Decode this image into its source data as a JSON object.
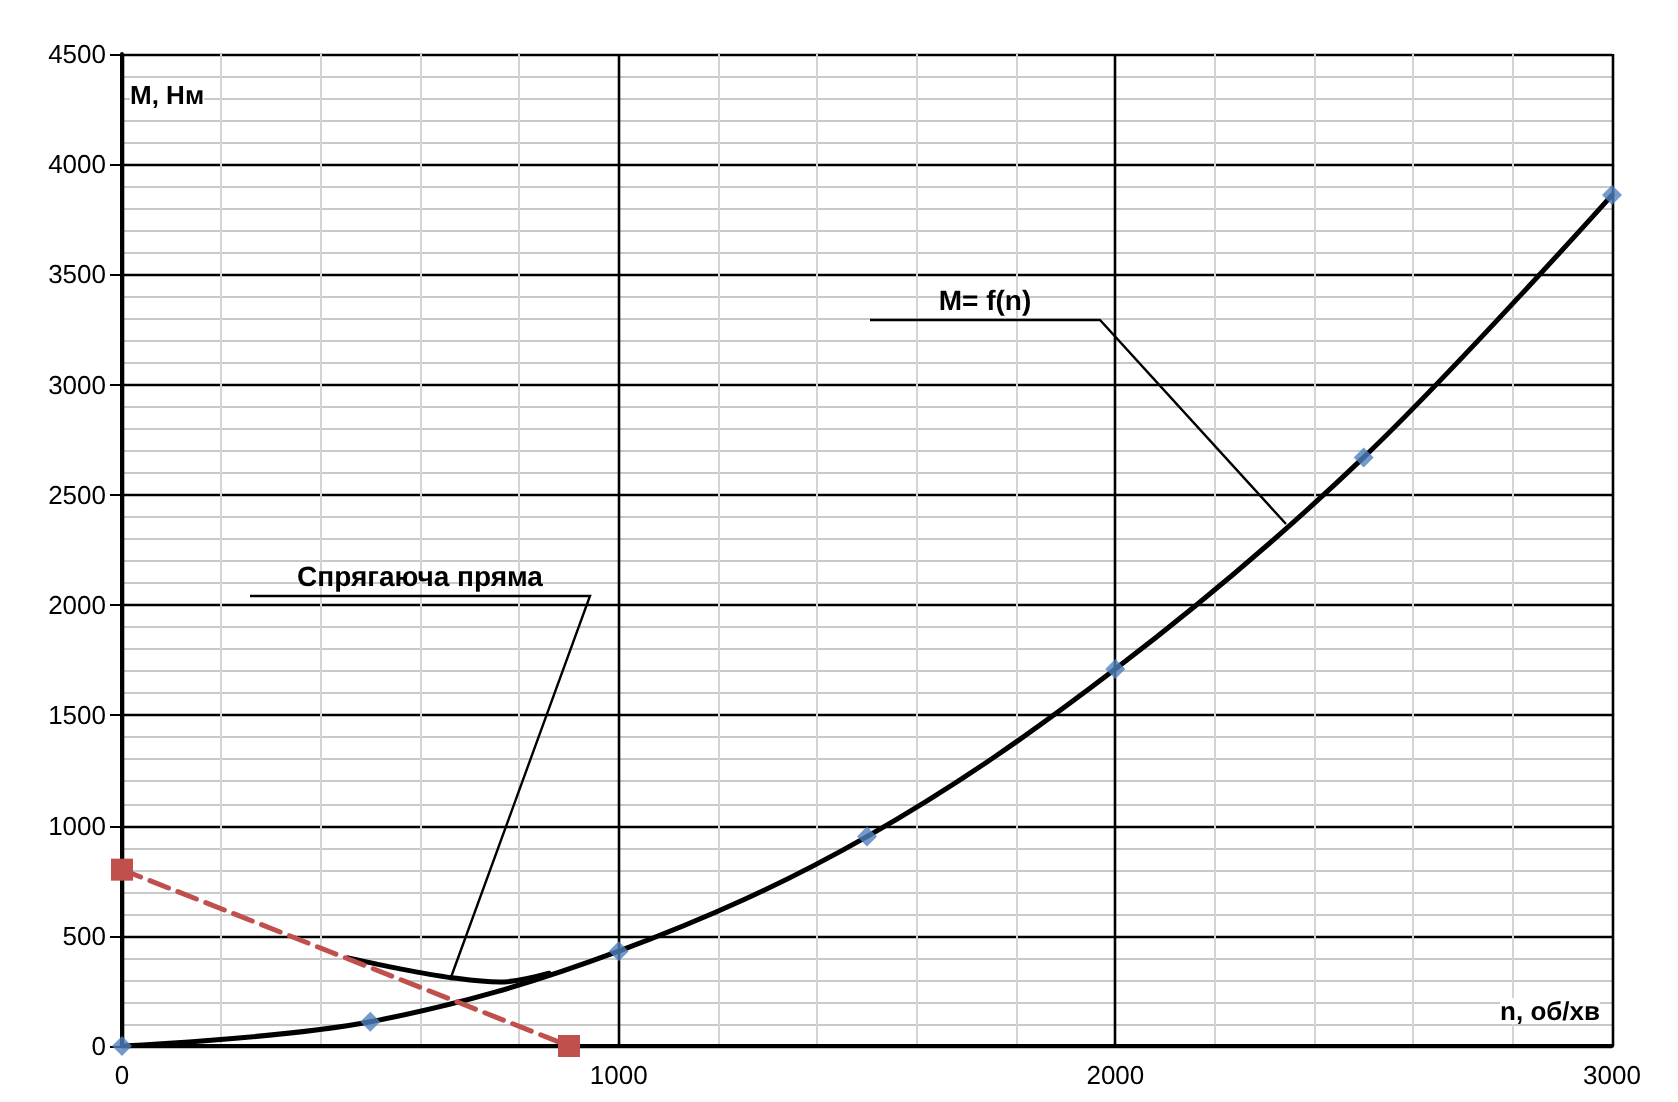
{
  "chart_data": {
    "type": "line",
    "xlabel": "n, об/хв",
    "ylabel": "M, Нм",
    "xlim": [
      0,
      3000
    ],
    "xticks": [
      0,
      1000,
      2000,
      3000
    ],
    "ylim": [
      0,
      4500
    ],
    "yticks": [
      0,
      500,
      1000,
      1500,
      2000,
      2500,
      3000,
      3500,
      4000,
      4500
    ],
    "grid": true,
    "series": [
      {
        "color": "#000000",
        "marker": "none",
        "line_style": "solid",
        "x": [
          455,
          560,
          664,
          760,
          860
        ],
        "values": [
          400,
          350,
          310,
          290,
          330
        ]
      },
      {
        "color": "#c0504d",
        "marker": "square",
        "line_style": "dashed",
        "x": [
          0,
          900
        ],
        "values": [
          800,
          0
        ]
      },
      {
        "color": "#000000",
        "marker": "none",
        "line_style": "solid",
        "x": [
          0,
          500,
          1000,
          1500,
          2000,
          2500,
          3000
        ],
        "values": [
          0,
          110,
          430,
          950,
          1710,
          2670,
          3860
        ]
      },
      {
        "type": "scatter",
        "color": "#4f81bd",
        "marker": "diamond",
        "x": [
          0,
          500,
          1000,
          1500,
          2000,
          2500,
          3000
        ],
        "values": [
          0,
          110,
          430,
          950,
          1710,
          2670,
          3860
        ]
      }
    ],
    "annotations": [
      "M= f(n)",
      "Спрягаюча пряма"
    ]
  }
}
